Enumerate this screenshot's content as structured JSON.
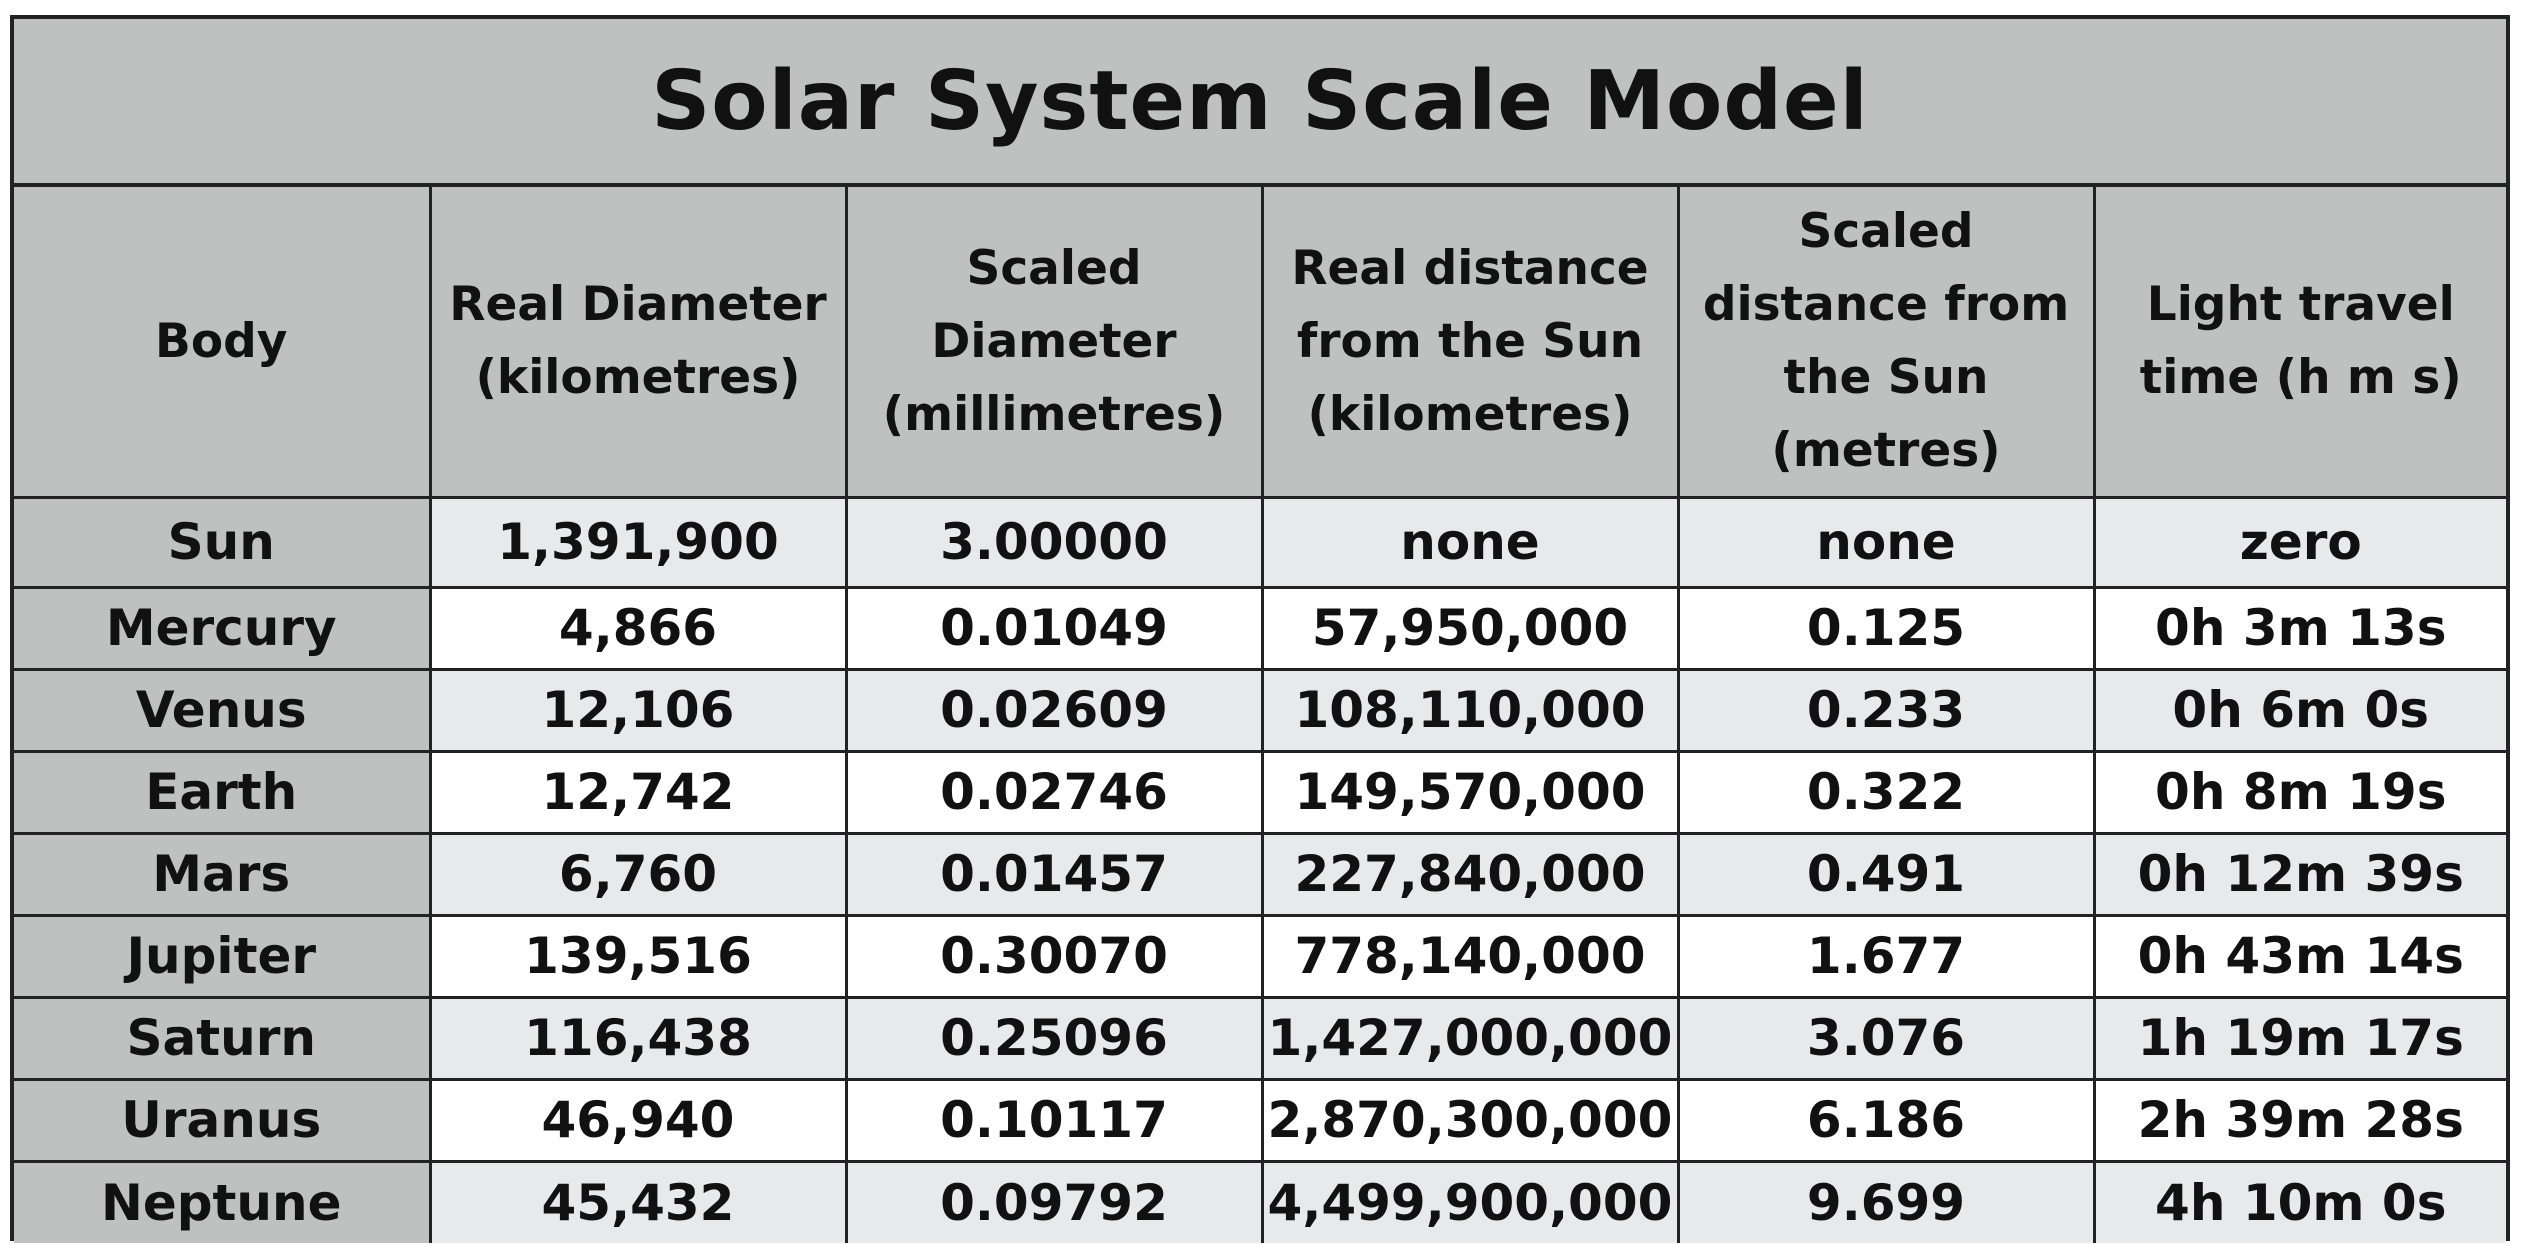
{
  "title": "Solar System Scale Model",
  "columns": [
    {
      "lines": [
        "Body"
      ]
    },
    {
      "lines": [
        "Real Diameter",
        "(kilometres)"
      ]
    },
    {
      "lines": [
        "Scaled",
        "Diameter",
        "(millimetres)"
      ]
    },
    {
      "lines": [
        "Real distance",
        "from the Sun",
        "(kilometres)"
      ]
    },
    {
      "lines": [
        "Scaled",
        "distance from",
        "the Sun",
        "(metres)"
      ]
    },
    {
      "lines": [
        "Light travel",
        "time (h m s)"
      ]
    }
  ],
  "rows": [
    {
      "body": "Sun",
      "real_diameter": "1,391,900",
      "scaled_diameter": "3.00000",
      "real_distance": "none",
      "scaled_distance": "none",
      "light_time": "zero"
    },
    {
      "body": "Mercury",
      "real_diameter": "4,866",
      "scaled_diameter": "0.01049",
      "real_distance": "57,950,000",
      "scaled_distance": "0.125",
      "light_time": "0h 3m 13s"
    },
    {
      "body": "Venus",
      "real_diameter": "12,106",
      "scaled_diameter": "0.02609",
      "real_distance": "108,110,000",
      "scaled_distance": "0.233",
      "light_time": "0h 6m 0s"
    },
    {
      "body": "Earth",
      "real_diameter": "12,742",
      "scaled_diameter": "0.02746",
      "real_distance": "149,570,000",
      "scaled_distance": "0.322",
      "light_time": "0h 8m 19s"
    },
    {
      "body": "Mars",
      "real_diameter": "6,760",
      "scaled_diameter": "0.01457",
      "real_distance": "227,840,000",
      "scaled_distance": "0.491",
      "light_time": "0h 12m 39s"
    },
    {
      "body": "Jupiter",
      "real_diameter": "139,516",
      "scaled_diameter": "0.30070",
      "real_distance": "778,140,000",
      "scaled_distance": "1.677",
      "light_time": "0h 43m 14s"
    },
    {
      "body": "Saturn",
      "real_diameter": "116,438",
      "scaled_diameter": "0.25096",
      "real_distance": "1,427,000,000",
      "scaled_distance": "3.076",
      "light_time": "1h 19m 17s"
    },
    {
      "body": "Uranus",
      "real_diameter": "46,940",
      "scaled_diameter": "0.10117",
      "real_distance": "2,870,300,000",
      "scaled_distance": "6.186",
      "light_time": "2h 39m 28s"
    },
    {
      "body": "Neptune",
      "real_diameter": "45,432",
      "scaled_diameter": "0.09792",
      "real_distance": "4,499,900,000",
      "scaled_distance": "9.699",
      "light_time": "4h 10m 0s"
    }
  ],
  "colors": {
    "header_bg": "#bfc1c0",
    "row_shade": "#e7eaeb",
    "row_plain": "#ffffff",
    "border": "#222222"
  }
}
